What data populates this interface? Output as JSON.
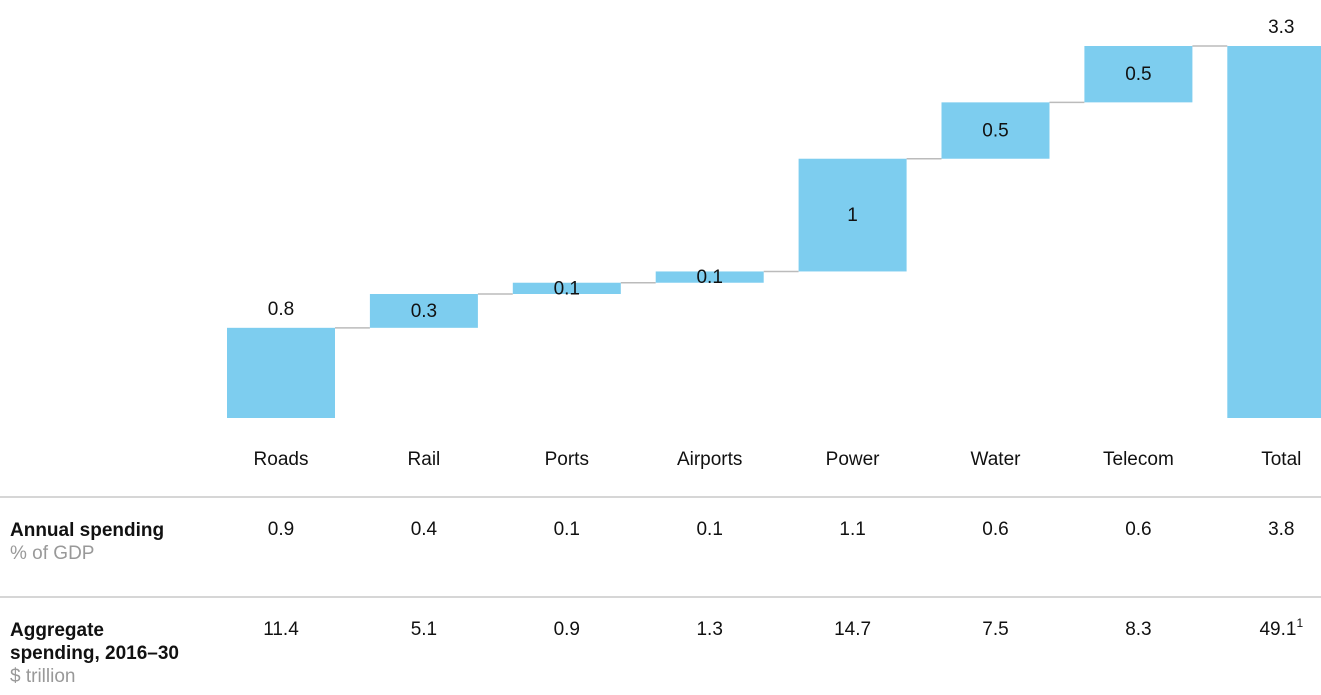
{
  "chart_data": {
    "type": "waterfall",
    "categories": [
      "Roads",
      "Rail",
      "Ports",
      "Airports",
      "Power",
      "Water",
      "Telecom",
      "Total"
    ],
    "values": [
      0.8,
      0.3,
      0.1,
      0.1,
      1.0,
      0.5,
      0.5,
      3.3
    ],
    "color": "#7dcdef"
  },
  "table": {
    "rows": [
      {
        "label": "Annual spending",
        "sublabel": "% of GDP",
        "values": [
          "0.9",
          "0.4",
          "0.1",
          "0.1",
          "1.1",
          "0.6",
          "0.6",
          "3.8"
        ]
      },
      {
        "label": "Aggregate spending, 2016–30",
        "sublabel": "$ trillion",
        "values": [
          "11.4",
          "5.1",
          "0.9",
          "1.3",
          "14.7",
          "7.5",
          "8.3",
          "49.1"
        ],
        "footnote_marker": "1"
      }
    ]
  }
}
